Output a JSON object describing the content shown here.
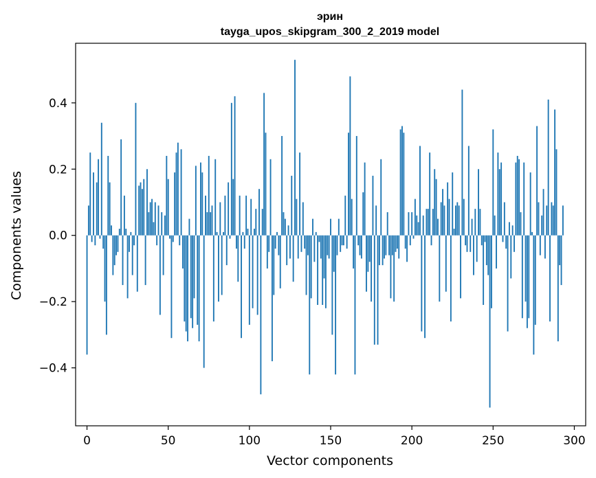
{
  "chart_data": {
    "type": "bar",
    "title": "эрин",
    "subtitle": "tayga_upos_skipgram_300_2_2019 model",
    "xlabel": "Vector components",
    "ylabel": "Components values",
    "xlim": [
      -7,
      307
    ],
    "ylim": [
      -0.575,
      0.58
    ],
    "x_ticks": [
      0,
      50,
      100,
      150,
      200,
      250,
      300
    ],
    "x_tick_labels": [
      "0",
      "50",
      "100",
      "150",
      "200",
      "250",
      "300"
    ],
    "y_ticks": [
      -0.4,
      -0.2,
      0.0,
      0.2,
      0.4
    ],
    "y_tick_labels": [
      "−0.4",
      "−0.2",
      "0.0",
      "0.2",
      "0.4"
    ],
    "bar_color": "#1f77b4",
    "series": [
      {
        "name": "эрин",
        "values": [
          -0.36,
          0.09,
          0.25,
          -0.02,
          0.19,
          -0.03,
          0.16,
          0.23,
          -0.01,
          0.34,
          -0.04,
          -0.2,
          -0.3,
          0.24,
          0.16,
          0.03,
          -0.12,
          -0.09,
          -0.06,
          -0.05,
          0.02,
          0.29,
          -0.15,
          0.12,
          0.02,
          -0.19,
          -0.05,
          0.01,
          -0.12,
          -0.03,
          0.4,
          -0.17,
          0.15,
          0.16,
          0.14,
          0.17,
          -0.15,
          0.2,
          0.07,
          0.1,
          0.11,
          0.04,
          0.1,
          -0.03,
          0.09,
          -0.24,
          0.07,
          -0.12,
          0.06,
          0.24,
          0.17,
          -0.01,
          -0.31,
          -0.02,
          0.19,
          0.25,
          0.28,
          -0.03,
          0.26,
          -0.1,
          -0.26,
          -0.29,
          -0.32,
          0.05,
          -0.25,
          -0.28,
          -0.19,
          0.21,
          -0.27,
          -0.32,
          0.22,
          0.19,
          -0.4,
          0.12,
          0.07,
          0.24,
          0.07,
          0.09,
          -0.26,
          0.23,
          0.01,
          -0.2,
          0.1,
          -0.18,
          0.01,
          0.12,
          -0.09,
          0.16,
          -0.01,
          0.4,
          0.17,
          0.42,
          -0.04,
          -0.14,
          0.12,
          -0.31,
          0.01,
          -0.04,
          0.12,
          0.02,
          -0.27,
          0.11,
          -0.22,
          0.02,
          0.08,
          -0.24,
          0.14,
          -0.48,
          0.08,
          0.43,
          0.31,
          -0.1,
          -0.05,
          0.23,
          -0.38,
          -0.18,
          -0.04,
          0.01,
          -0.06,
          -0.16,
          0.3,
          0.07,
          0.05,
          -0.09,
          0.03,
          -0.07,
          0.18,
          -0.14,
          0.53,
          0.11,
          -0.07,
          0.25,
          -0.05,
          0.1,
          -0.04,
          -0.18,
          -0.06,
          -0.42,
          -0.19,
          0.05,
          -0.08,
          0.01,
          -0.21,
          -0.02,
          -0.07,
          -0.21,
          -0.13,
          -0.22,
          -0.06,
          -0.07,
          0.05,
          -0.3,
          -0.11,
          -0.42,
          -0.06,
          0.05,
          -0.05,
          -0.03,
          -0.03,
          0.12,
          -0.04,
          0.31,
          0.48,
          0.11,
          -0.1,
          -0.42,
          0.3,
          -0.03,
          -0.06,
          -0.07,
          0.13,
          0.22,
          -0.17,
          -0.11,
          -0.08,
          -0.2,
          0.18,
          -0.33,
          0.09,
          -0.33,
          -0.09,
          0.23,
          -0.09,
          -0.07,
          -0.06,
          0.07,
          -0.06,
          -0.19,
          -0.06,
          -0.2,
          -0.05,
          -0.04,
          -0.07,
          0.32,
          0.33,
          0.31,
          -0.04,
          -0.08,
          0.07,
          -0.03,
          0.07,
          -0.01,
          0.11,
          0.06,
          0.04,
          0.27,
          -0.29,
          0.06,
          -0.31,
          0.08,
          0.08,
          0.25,
          -0.03,
          0.08,
          0.2,
          0.17,
          0.05,
          -0.2,
          0.1,
          0.14,
          0.09,
          -0.17,
          0.16,
          0.11,
          -0.26,
          0.19,
          0.02,
          0.09,
          0.1,
          0.09,
          -0.19,
          0.44,
          0.11,
          -0.03,
          -0.05,
          0.27,
          -0.05,
          0.05,
          -0.12,
          0.08,
          -0.08,
          0.2,
          0.08,
          -0.03,
          -0.21,
          -0.02,
          -0.09,
          -0.12,
          -0.52,
          -0.22,
          0.32,
          0.06,
          -0.1,
          0.25,
          0.2,
          0.22,
          -0.02,
          0.1,
          -0.04,
          -0.29,
          0.04,
          -0.13,
          0.03,
          -0.05,
          0.22,
          0.24,
          0.23,
          0.07,
          -0.25,
          0.22,
          -0.2,
          -0.28,
          -0.25,
          0.19,
          0.01,
          -0.36,
          -0.27,
          0.33,
          0.1,
          -0.06,
          0.06,
          0.14,
          -0.07,
          0.09,
          0.41,
          -0.26,
          0.1,
          0.09,
          0.38,
          0.26,
          -0.32,
          -0.09,
          -0.15,
          0.09
        ]
      }
    ]
  }
}
